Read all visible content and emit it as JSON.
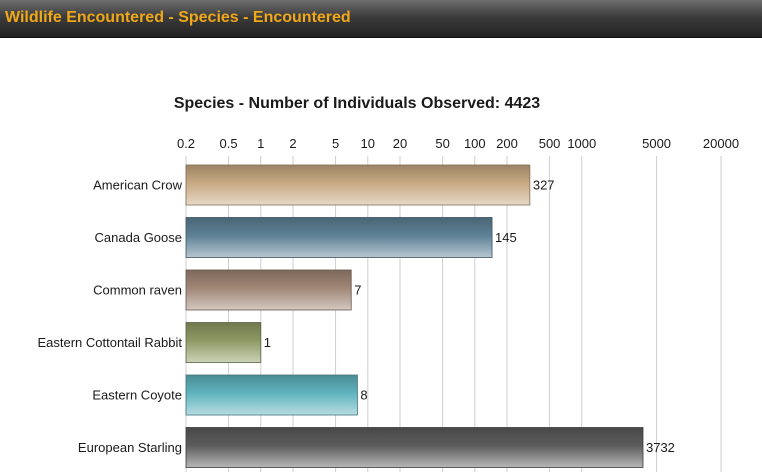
{
  "header": {
    "title": "Wildlife Encountered - Species - Encountered"
  },
  "colors": {
    "header_text": "#f0a818",
    "grid": "#cfcfcf",
    "bar_colors": [
      "#c8a982",
      "#5d8196",
      "#a08776",
      "#8e9a64",
      "#5fb3be",
      "#5c5c5c"
    ]
  },
  "chart_data": {
    "type": "bar",
    "orientation": "horizontal",
    "title": "Species - Number of Individuals Observed: 4423",
    "xscale": "log",
    "xlim": [
      0.2,
      20000
    ],
    "xticks": [
      0.2,
      0.5,
      1,
      2,
      5,
      10,
      20,
      50,
      100,
      200,
      500,
      1000,
      5000,
      20000
    ],
    "tick_labels": [
      "0.2",
      "0.5",
      "1",
      "2",
      "5",
      "10",
      "20",
      "50",
      "100",
      "200",
      "500",
      "1000",
      "5000",
      "20000"
    ],
    "grid": true,
    "categories": [
      "American Crow",
      "Canada Goose",
      "Common raven",
      "Eastern Cottontail Rabbit",
      "Eastern Coyote",
      "European Starling"
    ],
    "values": [
      327,
      145,
      7,
      1,
      8,
      3732
    ],
    "data_labels": [
      "327",
      "145",
      "7",
      "1",
      "8",
      "3732"
    ]
  }
}
